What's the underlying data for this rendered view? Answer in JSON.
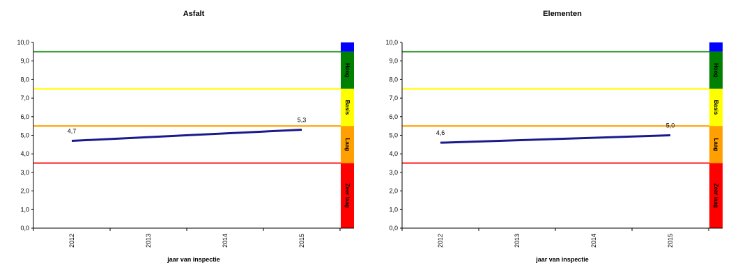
{
  "chart_data": [
    {
      "type": "line",
      "title": "Asfalt",
      "xlabel": "jaar van inspectie",
      "ylabel": "",
      "categories": [
        "2012",
        "2013",
        "2014",
        "2015"
      ],
      "x": [
        2012,
        2015
      ],
      "y": [
        4.7,
        5.3
      ],
      "data_labels": [
        "4,7",
        "5,3"
      ],
      "ylim": [
        0,
        10
      ],
      "yticks": [
        "0,0",
        "1,0",
        "2,0",
        "3,0",
        "4,0",
        "5,0",
        "6,0",
        "7,0",
        "8,0",
        "9,0",
        "10,0"
      ],
      "threshold_lines": [
        {
          "value": 9.5,
          "color": "#1a8a1a"
        },
        {
          "value": 7.5,
          "color": "#ffff00"
        },
        {
          "value": 5.5,
          "color": "#ffa000"
        },
        {
          "value": 3.5,
          "color": "#ff1a1a"
        }
      ],
      "bands": [
        {
          "label": "",
          "from": 9.5,
          "to": 10,
          "color": "#0000ff"
        },
        {
          "label": "Hoog",
          "from": 7.5,
          "to": 9.5,
          "color": "#008000"
        },
        {
          "label": "Basis",
          "from": 5.5,
          "to": 7.5,
          "color": "#ffff00"
        },
        {
          "label": "Laag",
          "from": 3.5,
          "to": 5.5,
          "color": "#ffa000"
        },
        {
          "label": "Zeer laag",
          "from": 0,
          "to": 3.5,
          "color": "#ff0000"
        }
      ],
      "line_color": "#1a1a8c",
      "grid": false
    },
    {
      "type": "line",
      "title": "Elementen",
      "xlabel": "jaar van inspectie",
      "ylabel": "",
      "categories": [
        "2012",
        "2013",
        "2014",
        "2015"
      ],
      "x": [
        2012,
        2015
      ],
      "y": [
        4.6,
        5.0
      ],
      "data_labels": [
        "4,6",
        "5,0"
      ],
      "ylim": [
        0,
        10
      ],
      "yticks": [
        "0,0",
        "1,0",
        "2,0",
        "3,0",
        "4,0",
        "5,0",
        "6,0",
        "7,0",
        "8,0",
        "9,0",
        "10,0"
      ],
      "threshold_lines": [
        {
          "value": 9.5,
          "color": "#1a8a1a"
        },
        {
          "value": 7.5,
          "color": "#ffff00"
        },
        {
          "value": 5.5,
          "color": "#ffa000"
        },
        {
          "value": 3.5,
          "color": "#ff1a1a"
        }
      ],
      "bands": [
        {
          "label": "",
          "from": 9.5,
          "to": 10,
          "color": "#0000ff"
        },
        {
          "label": "Hoog",
          "from": 7.5,
          "to": 9.5,
          "color": "#008000"
        },
        {
          "label": "Basis",
          "from": 5.5,
          "to": 7.5,
          "color": "#ffff00"
        },
        {
          "label": "Laag",
          "from": 3.5,
          "to": 5.5,
          "color": "#ffa000"
        },
        {
          "label": "Zeer laag",
          "from": 0,
          "to": 3.5,
          "color": "#ff0000"
        }
      ],
      "line_color": "#1a1a8c",
      "grid": false
    }
  ]
}
